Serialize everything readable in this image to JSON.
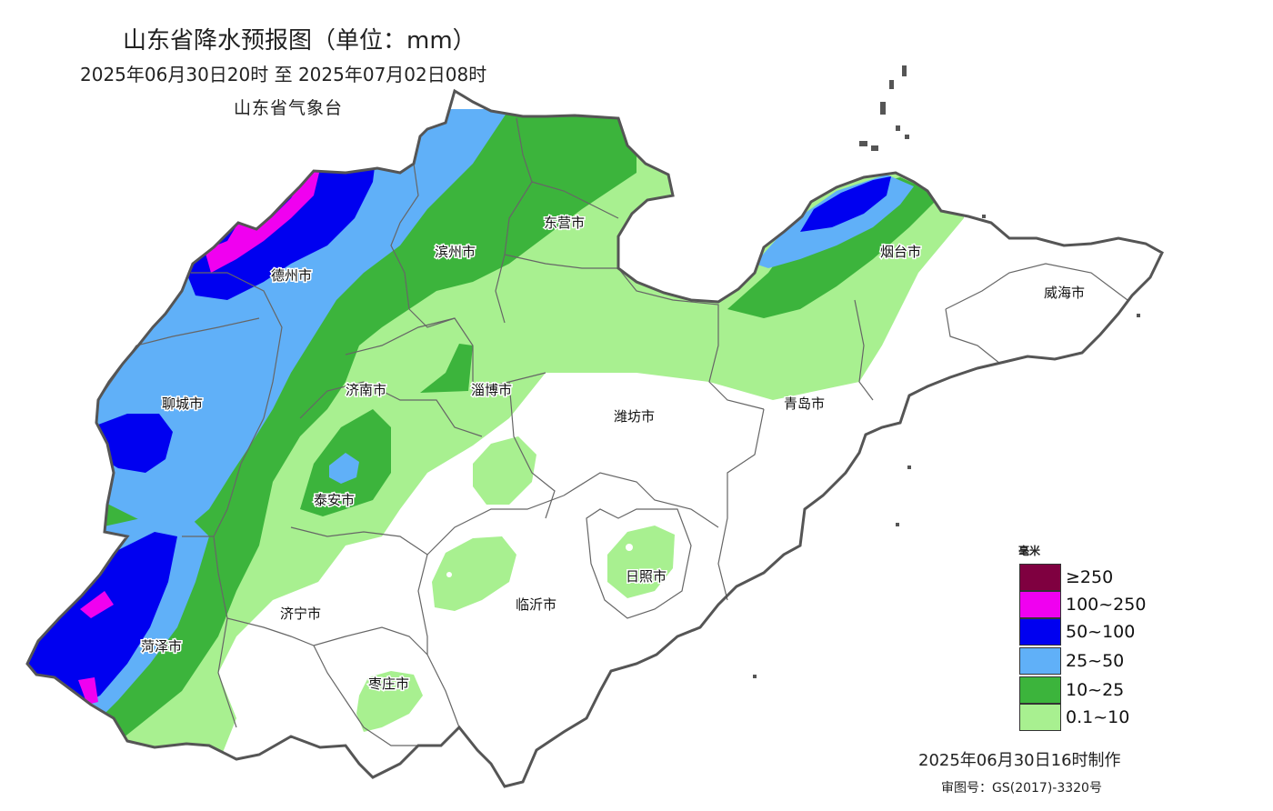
{
  "map": {
    "title": "山东省降水预报图（单位：mm）",
    "period": "2025年06月30日20时  至  2025年07月02日08时",
    "agency": "山东省气象台",
    "made_time": "2025年06月30日16时制作",
    "review_number": "审图号：GS(2017)-3320号"
  },
  "cities": [
    {
      "name": "德州市"
    },
    {
      "name": "滨州市"
    },
    {
      "name": "东营市"
    },
    {
      "name": "烟台市"
    },
    {
      "name": "威海市"
    },
    {
      "name": "聊城市"
    },
    {
      "name": "济南市"
    },
    {
      "name": "淄博市"
    },
    {
      "name": "潍坊市"
    },
    {
      "name": "青岛市"
    },
    {
      "name": "泰安市"
    },
    {
      "name": "日照市"
    },
    {
      "name": "济宁市"
    },
    {
      "name": "临沂市"
    },
    {
      "name": "菏泽市"
    },
    {
      "name": "枣庄市"
    }
  ],
  "legend": {
    "unit": "毫米",
    "items": [
      {
        "label": "≥250",
        "color": "#7f0040"
      },
      {
        "label": "100~250",
        "color": "#f000f0"
      },
      {
        "label": "50~100",
        "color": "#0000f0"
      },
      {
        "label": "25~50",
        "color": "#60b0f8"
      },
      {
        "label": "10~25",
        "color": "#3cb43c"
      },
      {
        "label": "0.1~10",
        "color": "#a8f090"
      }
    ]
  }
}
